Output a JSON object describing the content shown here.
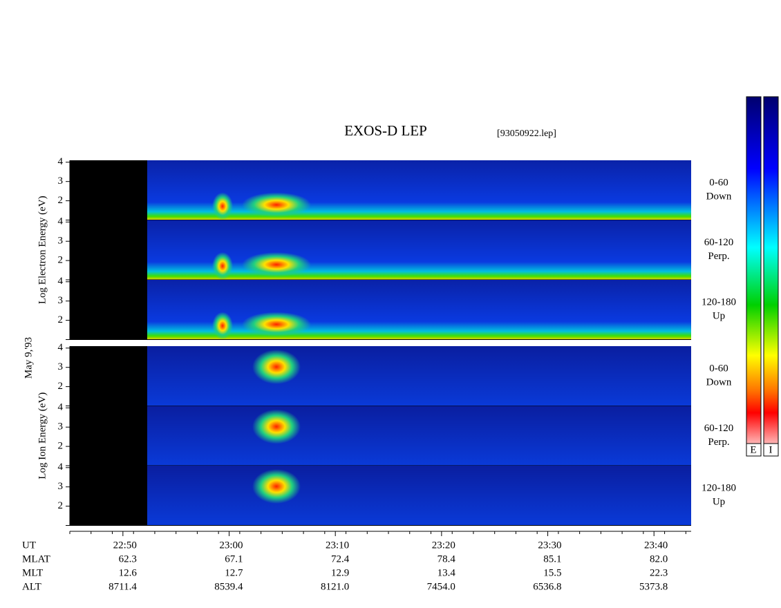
{
  "chart_data": {
    "type": "spectrogram",
    "title": "EXOS-D LEP",
    "subtitle": "[93050922.lep]",
    "date_label": "May  9,'93",
    "xlim": [
      1365,
      1423.5
    ],
    "xticks": [
      {
        "value": 1370,
        "label": "22:50"
      },
      {
        "value": 1380,
        "label": "23:00"
      },
      {
        "value": 1390,
        "label": "23:10"
      },
      {
        "value": 1400,
        "label": "23:20"
      },
      {
        "value": 1410,
        "label": "23:30"
      },
      {
        "value": 1420,
        "label": "23:40"
      }
    ],
    "ylim": [
      1,
      4.1
    ],
    "yticks": [
      2,
      3,
      4
    ],
    "groups": [
      {
        "ylabel": "Log Electron Energy (eV)",
        "panels": [
          {
            "range": "0-60",
            "direction": "Down"
          },
          {
            "range": "60-120",
            "direction": "Perp."
          },
          {
            "range": "120-180",
            "direction": "Up"
          }
        ]
      },
      {
        "ylabel": "Log Ion Energy (eV)",
        "panels": [
          {
            "range": "0-60",
            "direction": "Down"
          },
          {
            "range": "60-120",
            "direction": "Perp."
          },
          {
            "range": "120-180",
            "direction": "Up"
          }
        ]
      }
    ],
    "colorbar_labels": [
      "E",
      "I"
    ],
    "ephemeris": {
      "time_label": "UT",
      "rows": [
        {
          "name": "MLAT",
          "values": [
            "62.3",
            "67.1",
            "72.4",
            "78.4",
            "85.1",
            "82.0"
          ]
        },
        {
          "name": "MLT",
          "values": [
            "12.6",
            "12.7",
            "12.9",
            "13.4",
            "15.5",
            "22.3"
          ]
        },
        {
          "name": "ALT",
          "values": [
            "8711.4",
            "8539.4",
            "8121.0",
            "7454.0",
            "6536.8",
            "5373.8"
          ]
        }
      ]
    }
  }
}
